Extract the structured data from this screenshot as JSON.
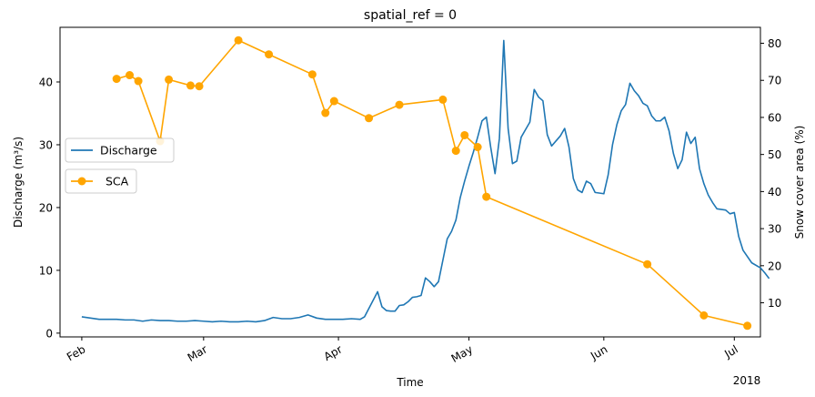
{
  "chart_data": {
    "type": "line",
    "title": "spatial_ref = 0",
    "xlabel": "Time",
    "ylabel_left": "Discharge (m³/s)",
    "ylabel_right": "Snow cover area (%)",
    "year_label": "2018",
    "x_ticks": [
      "Feb",
      "Mar",
      "Apr",
      "May",
      "Jun",
      "Jul"
    ],
    "xlim": [
      "2018-01-27",
      "2018-07-07"
    ],
    "ylim_left": [
      -0.6,
      48.7
    ],
    "ylim_right": [
      0.8,
      84.3
    ],
    "y_ticks_left": [
      0,
      10,
      20,
      30,
      40
    ],
    "y_ticks_right": [
      10,
      20,
      30,
      40,
      50,
      60,
      70,
      80
    ],
    "grid": false,
    "legend_placement": "center-left",
    "series": [
      {
        "name": "Discharge",
        "axis": "left",
        "color": "#1f77b4",
        "marker": "none",
        "points": [
          [
            "2018-02-01",
            2.6
          ],
          [
            "2018-02-03",
            2.4
          ],
          [
            "2018-02-05",
            2.2
          ],
          [
            "2018-02-07",
            2.2
          ],
          [
            "2018-02-09",
            2.2
          ],
          [
            "2018-02-11",
            2.1
          ],
          [
            "2018-02-13",
            2.1
          ],
          [
            "2018-02-15",
            1.9
          ],
          [
            "2018-02-17",
            2.1
          ],
          [
            "2018-02-19",
            2.0
          ],
          [
            "2018-02-21",
            2.0
          ],
          [
            "2018-02-23",
            1.9
          ],
          [
            "2018-02-25",
            1.9
          ],
          [
            "2018-02-27",
            2.0
          ],
          [
            "2018-03-01",
            1.9
          ],
          [
            "2018-03-03",
            1.8
          ],
          [
            "2018-03-05",
            1.9
          ],
          [
            "2018-03-07",
            1.8
          ],
          [
            "2018-03-09",
            1.8
          ],
          [
            "2018-03-11",
            1.9
          ],
          [
            "2018-03-13",
            1.8
          ],
          [
            "2018-03-15",
            2.0
          ],
          [
            "2018-03-17",
            2.5
          ],
          [
            "2018-03-19",
            2.3
          ],
          [
            "2018-03-21",
            2.3
          ],
          [
            "2018-03-23",
            2.5
          ],
          [
            "2018-03-25",
            2.9
          ],
          [
            "2018-03-27",
            2.4
          ],
          [
            "2018-03-29",
            2.2
          ],
          [
            "2018-03-31",
            2.2
          ],
          [
            "2018-04-02",
            2.2
          ],
          [
            "2018-04-04",
            2.3
          ],
          [
            "2018-04-06",
            2.2
          ],
          [
            "2018-04-07",
            2.6
          ],
          [
            "2018-04-10",
            6.6
          ],
          [
            "2018-04-11",
            4.2
          ],
          [
            "2018-04-12",
            3.6
          ],
          [
            "2018-04-13",
            3.5
          ],
          [
            "2018-04-14",
            3.5
          ],
          [
            "2018-04-15",
            4.4
          ],
          [
            "2018-04-16",
            4.5
          ],
          [
            "2018-04-17",
            5.0
          ],
          [
            "2018-04-18",
            5.7
          ],
          [
            "2018-04-19",
            5.8
          ],
          [
            "2018-04-20",
            6.0
          ],
          [
            "2018-04-21",
            8.8
          ],
          [
            "2018-04-22",
            8.2
          ],
          [
            "2018-04-23",
            7.4
          ],
          [
            "2018-04-24",
            8.2
          ],
          [
            "2018-04-25",
            11.6
          ],
          [
            "2018-04-26",
            15.0
          ],
          [
            "2018-04-27",
            16.2
          ],
          [
            "2018-04-28",
            18.0
          ],
          [
            "2018-04-29",
            21.6
          ],
          [
            "2018-04-30",
            24.2
          ],
          [
            "2018-05-01",
            26.6
          ],
          [
            "2018-05-02",
            28.8
          ],
          [
            "2018-05-03",
            31.2
          ],
          [
            "2018-05-04",
            33.8
          ],
          [
            "2018-05-05",
            34.4
          ],
          [
            "2018-05-06",
            29.6
          ],
          [
            "2018-05-07",
            25.4
          ],
          [
            "2018-05-08",
            31.0
          ],
          [
            "2018-05-09",
            46.6
          ],
          [
            "2018-05-10",
            32.6
          ],
          [
            "2018-05-11",
            27.0
          ],
          [
            "2018-05-12",
            27.4
          ],
          [
            "2018-05-13",
            31.2
          ],
          [
            "2018-05-14",
            32.4
          ],
          [
            "2018-05-15",
            33.6
          ],
          [
            "2018-05-16",
            38.8
          ],
          [
            "2018-05-17",
            37.6
          ],
          [
            "2018-05-18",
            37.0
          ],
          [
            "2018-05-19",
            31.6
          ],
          [
            "2018-05-20",
            29.8
          ],
          [
            "2018-05-21",
            30.6
          ],
          [
            "2018-05-22",
            31.4
          ],
          [
            "2018-05-23",
            32.6
          ],
          [
            "2018-05-24",
            29.6
          ],
          [
            "2018-05-25",
            24.6
          ],
          [
            "2018-05-26",
            22.8
          ],
          [
            "2018-05-27",
            22.4
          ],
          [
            "2018-05-28",
            24.2
          ],
          [
            "2018-05-29",
            23.8
          ],
          [
            "2018-05-30",
            22.4
          ],
          [
            "2018-06-01",
            22.2
          ],
          [
            "2018-06-02",
            25.2
          ],
          [
            "2018-06-03",
            30.0
          ],
          [
            "2018-06-04",
            33.2
          ],
          [
            "2018-06-05",
            35.4
          ],
          [
            "2018-06-06",
            36.4
          ],
          [
            "2018-06-07",
            39.8
          ],
          [
            "2018-06-08",
            38.6
          ],
          [
            "2018-06-09",
            37.8
          ],
          [
            "2018-06-10",
            36.6
          ],
          [
            "2018-06-11",
            36.2
          ],
          [
            "2018-06-12",
            34.6
          ],
          [
            "2018-06-13",
            33.8
          ],
          [
            "2018-06-14",
            33.8
          ],
          [
            "2018-06-15",
            34.4
          ],
          [
            "2018-06-16",
            32.2
          ],
          [
            "2018-06-17",
            28.6
          ],
          [
            "2018-06-18",
            26.2
          ],
          [
            "2018-06-19",
            27.6
          ],
          [
            "2018-06-20",
            32.0
          ],
          [
            "2018-06-21",
            30.2
          ],
          [
            "2018-06-22",
            31.2
          ],
          [
            "2018-06-23",
            26.2
          ],
          [
            "2018-06-24",
            23.8
          ],
          [
            "2018-06-25",
            22.0
          ],
          [
            "2018-06-26",
            20.8
          ],
          [
            "2018-06-27",
            19.8
          ],
          [
            "2018-06-29",
            19.6
          ],
          [
            "2018-06-30",
            19.0
          ],
          [
            "2018-07-01",
            19.2
          ],
          [
            "2018-07-02",
            15.4
          ],
          [
            "2018-07-03",
            13.2
          ],
          [
            "2018-07-05",
            11.2
          ],
          [
            "2018-07-07",
            10.4
          ],
          [
            "2018-07-08",
            9.6
          ],
          [
            "2018-07-09",
            8.7
          ]
        ]
      },
      {
        "name": "SCA",
        "axis": "right",
        "color": "#ffa500",
        "marker": "circle",
        "points": [
          [
            "2018-02-09",
            70.4
          ],
          [
            "2018-02-12",
            71.4
          ],
          [
            "2018-02-14",
            69.8
          ],
          [
            "2018-02-19",
            53.6
          ],
          [
            "2018-02-21",
            70.2
          ],
          [
            "2018-02-26",
            68.6
          ],
          [
            "2018-02-28",
            68.4
          ],
          [
            "2018-03-09",
            80.8
          ],
          [
            "2018-03-16",
            77.0
          ],
          [
            "2018-03-26",
            71.6
          ],
          [
            "2018-03-29",
            61.2
          ],
          [
            "2018-03-31",
            64.4
          ],
          [
            "2018-04-08",
            59.8
          ],
          [
            "2018-04-15",
            63.4
          ],
          [
            "2018-04-25",
            64.8
          ],
          [
            "2018-04-28",
            51.0
          ],
          [
            "2018-04-30",
            55.2
          ],
          [
            "2018-05-03",
            52.0
          ],
          [
            "2018-05-05",
            38.6
          ],
          [
            "2018-06-11",
            20.4
          ],
          [
            "2018-06-24",
            6.6
          ],
          [
            "2018-07-04",
            3.8
          ]
        ]
      }
    ]
  }
}
